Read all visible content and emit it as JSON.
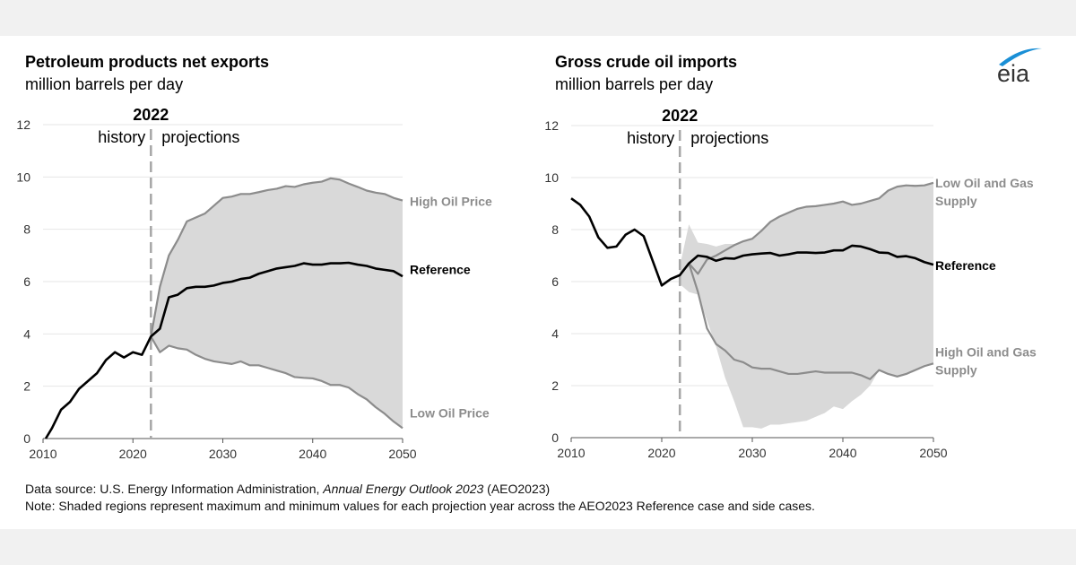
{
  "logo": {
    "text": "eia",
    "swoosh_color": "#1a8fd6"
  },
  "colors": {
    "band": "#d9d9d9",
    "side_line": "#8c8c8c",
    "reference": "#000000",
    "divider": "#a6a6a6",
    "grid": "#e6e6e6"
  },
  "footer": {
    "source_prefix": "Data source: U.S. Energy Information Administration, ",
    "source_italic": "Annual Energy Outlook 2023",
    "source_suffix": " (AEO2023)",
    "note": "Note: Shaded regions represent maximum and minimum values for each projection year across the AEO2023 Reference case and side cases."
  },
  "chart_data": [
    {
      "type": "line",
      "title": "Petroleum products net exports",
      "ylabel": "million barrels per day",
      "xlim": [
        2010,
        2050
      ],
      "ylim": [
        0,
        12
      ],
      "xticks": [
        "2010",
        "2020",
        "2030",
        "2040",
        "2050"
      ],
      "yticks": [
        "0",
        "2",
        "4",
        "6",
        "8",
        "10",
        "12"
      ],
      "grid": true,
      "divider": {
        "year": "2022",
        "left_label": "history",
        "right_label": "projections"
      },
      "series": [
        {
          "name": "Reference",
          "x_start": 2010,
          "values": [
            0,
            0.4,
            1.1,
            1.4,
            1.9,
            2.2,
            2.5,
            3.0,
            3.3,
            3.1,
            3.3,
            3.2,
            3.9,
            4.2,
            5.4,
            5.5,
            5.75,
            5.8,
            5.8,
            5.85,
            5.95,
            6.0,
            6.1,
            6.15,
            6.3,
            6.4,
            6.5,
            6.55,
            6.6,
            6.7,
            6.65,
            6.65,
            6.7,
            6.7,
            6.72,
            6.65,
            6.6,
            6.5,
            6.45,
            6.4,
            6.2
          ]
        },
        {
          "name": "High Oil Price",
          "x_start": 2022,
          "values": [
            3.9,
            5.8,
            7.0,
            7.6,
            8.3,
            8.45,
            8.6,
            8.9,
            9.2,
            9.25,
            9.35,
            9.35,
            9.42,
            9.5,
            9.55,
            9.65,
            9.62,
            9.72,
            9.78,
            9.82,
            9.95,
            9.9,
            9.75,
            9.62,
            9.48,
            9.4,
            9.35,
            9.2,
            9.1
          ]
        },
        {
          "name": "Low Oil Price",
          "x_start": 2022,
          "values": [
            3.9,
            3.3,
            3.55,
            3.45,
            3.4,
            3.2,
            3.05,
            2.95,
            2.9,
            2.85,
            2.95,
            2.8,
            2.8,
            2.7,
            2.6,
            2.5,
            2.35,
            2.32,
            2.3,
            2.2,
            2.05,
            2.05,
            1.95,
            1.7,
            1.5,
            1.2,
            0.95,
            0.65,
            0.4
          ]
        }
      ],
      "band": {
        "x_start": 2022,
        "max": [
          3.9,
          5.8,
          7.0,
          7.6,
          8.3,
          8.45,
          8.6,
          8.9,
          9.2,
          9.25,
          9.35,
          9.35,
          9.42,
          9.5,
          9.55,
          9.65,
          9.62,
          9.72,
          9.78,
          9.82,
          9.95,
          9.9,
          9.75,
          9.62,
          9.48,
          9.4,
          9.35,
          9.2,
          9.1
        ],
        "min": [
          3.9,
          3.3,
          3.55,
          3.45,
          3.4,
          3.2,
          3.05,
          2.95,
          2.9,
          2.85,
          2.95,
          2.8,
          2.8,
          2.7,
          2.6,
          2.5,
          2.35,
          2.32,
          2.3,
          2.2,
          2.05,
          2.05,
          1.95,
          1.7,
          1.5,
          1.2,
          0.95,
          0.65,
          0.4
        ]
      }
    },
    {
      "type": "line",
      "title": "Gross crude oil imports",
      "ylabel": "million barrels per day",
      "xlim": [
        2010,
        2050
      ],
      "ylim": [
        0,
        12
      ],
      "xticks": [
        "2010",
        "2020",
        "2030",
        "2040",
        "2050"
      ],
      "yticks": [
        "0",
        "2",
        "4",
        "6",
        "8",
        "10",
        "12"
      ],
      "grid": true,
      "divider": {
        "year": "2022",
        "left_label": "history",
        "right_label": "projections"
      },
      "series": [
        {
          "name": "Reference",
          "x_start": 2010,
          "values": [
            9.2,
            8.95,
            8.5,
            7.7,
            7.3,
            7.35,
            7.8,
            8.0,
            7.75,
            6.8,
            5.85,
            6.1,
            6.25,
            6.7,
            7.0,
            6.95,
            6.8,
            6.9,
            6.88,
            7.0,
            7.05,
            7.08,
            7.1,
            7.0,
            7.05,
            7.12,
            7.12,
            7.1,
            7.12,
            7.2,
            7.2,
            7.38,
            7.35,
            7.25,
            7.12,
            7.1,
            6.95,
            6.98,
            6.9,
            6.75,
            6.65
          ]
        },
        {
          "name": "Low Oil and Gas Supply",
          "x_start": 2022,
          "values": [
            6.25,
            6.7,
            6.3,
            6.85,
            7.0,
            7.2,
            7.4,
            7.55,
            7.65,
            7.95,
            8.3,
            8.5,
            8.65,
            8.8,
            8.88,
            8.9,
            8.95,
            9.0,
            9.08,
            8.95,
            9.0,
            9.1,
            9.2,
            9.5,
            9.65,
            9.7,
            9.68,
            9.7,
            9.8
          ]
        },
        {
          "name": "High Oil and Gas Supply",
          "x_start": 2022,
          "values": [
            6.25,
            6.7,
            5.6,
            4.2,
            3.6,
            3.35,
            3.0,
            2.9,
            2.7,
            2.65,
            2.65,
            2.55,
            2.45,
            2.45,
            2.5,
            2.55,
            2.5,
            2.5,
            2.5,
            2.5,
            2.4,
            2.25,
            2.6,
            2.45,
            2.35,
            2.45,
            2.6,
            2.75,
            2.85
          ]
        }
      ],
      "band": {
        "x_start": 2022,
        "max": [
          6.6,
          8.2,
          7.5,
          7.45,
          7.35,
          7.45,
          7.45,
          7.55,
          7.65,
          7.95,
          8.3,
          8.5,
          8.65,
          8.8,
          8.88,
          8.9,
          8.95,
          9.0,
          9.08,
          8.95,
          9.0,
          9.1,
          9.2,
          9.5,
          9.65,
          9.7,
          9.68,
          9.7,
          9.8
        ],
        "min": [
          5.9,
          5.6,
          5.5,
          4.5,
          3.5,
          2.3,
          1.4,
          0.4,
          0.4,
          0.35,
          0.5,
          0.5,
          0.55,
          0.6,
          0.65,
          0.8,
          0.95,
          1.2,
          1.1,
          1.4,
          1.65,
          2.0,
          2.6,
          2.45,
          2.35,
          2.45,
          2.6,
          2.75,
          2.85
        ]
      }
    }
  ]
}
